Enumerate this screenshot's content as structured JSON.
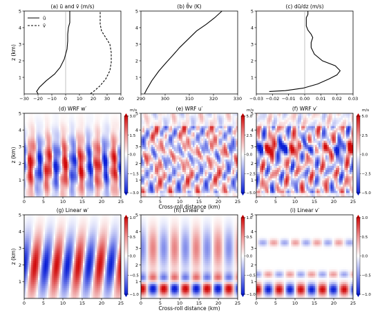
{
  "chart_data": [
    {
      "id": "a",
      "type": "line",
      "title": "(a) ū and v̄ (m/s)",
      "xlim": [
        -30,
        40
      ],
      "ylim": [
        0,
        5
      ],
      "ylabel": "z (km)",
      "xticks": [
        "−30",
        "−20",
        "−10",
        "0",
        "10",
        "20",
        "30",
        "40"
      ],
      "yticks": [
        "1",
        "2",
        "3",
        "4",
        "5"
      ],
      "legend": {
        "position": "top-left",
        "entries": [
          "ū",
          "v̄"
        ]
      },
      "series": [
        {
          "name": "ū",
          "style": "solid",
          "x": [
            -20,
            -21,
            -19,
            -14,
            -8,
            -4,
            -1,
            1,
            1.5,
            1.5,
            2,
            3,
            3,
            3
          ],
          "y": [
            0.02,
            0.15,
            0.4,
            0.8,
            1.2,
            1.6,
            2.1,
            2.7,
            3.2,
            3.6,
            4.0,
            4.3,
            4.7,
            5.0
          ]
        },
        {
          "name": "v̄",
          "style": "dashed",
          "x": [
            18,
            21,
            25,
            29,
            32,
            33,
            33,
            32,
            29,
            26,
            25,
            25,
            25
          ],
          "y": [
            0.02,
            0.2,
            0.5,
            0.9,
            1.4,
            1.9,
            2.5,
            3.0,
            3.4,
            3.8,
            4.2,
            4.6,
            5.0
          ]
        }
      ],
      "vline": 0
    },
    {
      "id": "b",
      "type": "line",
      "title": "(b) θ̄v (K)",
      "xlim": [
        290,
        330
      ],
      "ylim": [
        0,
        5
      ],
      "xticks": [
        "290",
        "300",
        "310",
        "320",
        "330"
      ],
      "yticks": [
        "1",
        "2",
        "3",
        "4",
        "5"
      ],
      "series": [
        {
          "name": "",
          "style": "solid",
          "x": [
            291.5,
            292.5,
            294.5,
            297.5,
            300.5,
            303,
            306,
            309.5,
            313,
            317,
            320.5,
            323.5
          ],
          "y": [
            0.02,
            0.3,
            0.8,
            1.4,
            1.9,
            2.3,
            2.8,
            3.3,
            3.8,
            4.2,
            4.6,
            5.0
          ]
        }
      ]
    },
    {
      "id": "c",
      "type": "line",
      "title": "(c) dū/dz (m/s)",
      "xlim": [
        -0.03,
        0.03
      ],
      "ylim": [
        0,
        5
      ],
      "xticks": [
        "−0.03",
        "−0.02",
        "−0.01",
        "0.00",
        "0.01",
        "0.02",
        "0.03"
      ],
      "yticks": [
        "1",
        "2",
        "3",
        "4",
        "5"
      ],
      "series": [
        {
          "name": "",
          "style": "solid",
          "x": [
            -0.022,
            -0.012,
            -0.001,
            0.008,
            0.015,
            0.02,
            0.022,
            0.019,
            0.011,
            0.006,
            0.004,
            0.004,
            0.005,
            0.004,
            0.002,
            0.001,
            0.001,
            0.001,
            0.002,
            0.002
          ],
          "y": [
            0.15,
            0.2,
            0.35,
            0.6,
            0.9,
            1.15,
            1.4,
            1.7,
            2.0,
            2.4,
            2.8,
            3.1,
            3.4,
            3.6,
            3.85,
            4.1,
            4.4,
            4.6,
            4.8,
            5.0
          ]
        }
      ],
      "vline": 0
    },
    {
      "id": "d",
      "type": "heatmap",
      "title": "(d) WRF w′",
      "ylabel": "z (km)",
      "xlim": [
        0,
        25
      ],
      "ylim": [
        0,
        5
      ],
      "pattern": "wrf_w",
      "xticks": [
        "0",
        "5",
        "10",
        "15",
        "20",
        "25"
      ],
      "yticks": [
        "1",
        "2",
        "3",
        "4",
        "5"
      ],
      "colorbar": {
        "unit": "m/s",
        "ticks": [
          "−3.0",
          "−1.5",
          "0.0",
          "1.5",
          "3.0"
        ],
        "range": [
          -3,
          3
        ]
      }
    },
    {
      "id": "e",
      "type": "heatmap",
      "title": "(e) WRF u′",
      "xlabel": "Cross-roll distance (km)",
      "xlim": [
        0,
        25
      ],
      "ylim": [
        0,
        5
      ],
      "pattern": "wrf_u",
      "xticks": [
        "0",
        "5",
        "10",
        "15",
        "20",
        "25"
      ],
      "yticks": [
        "1",
        "2",
        "3",
        "4",
        "5"
      ],
      "colorbar": {
        "unit": "m/s",
        "ticks": [
          "−5.0",
          "−2.5",
          "0.0",
          "2.5",
          "5.0"
        ],
        "range": [
          -5,
          5
        ]
      }
    },
    {
      "id": "f",
      "type": "heatmap",
      "title": "(f) WRF v′",
      "xlim": [
        0,
        25
      ],
      "ylim": [
        0,
        5
      ],
      "pattern": "wrf_v",
      "xticks": [
        "0",
        "5",
        "10",
        "15",
        "20",
        "25"
      ],
      "yticks": [
        "1",
        "2",
        "3",
        "4",
        "5"
      ],
      "colorbar": {
        "unit": "m/s",
        "ticks": [
          "−5.0",
          "−2.5",
          "0.0",
          "2.5",
          "5.0"
        ],
        "range": [
          -5,
          5
        ]
      }
    },
    {
      "id": "g",
      "type": "heatmap",
      "title": "(g) Linear w′",
      "ylabel": "z (km)",
      "xlim": [
        0,
        25
      ],
      "ylim": [
        0,
        5
      ],
      "pattern": "lin_w",
      "xticks": [
        "0",
        "5",
        "10",
        "15",
        "20",
        "25"
      ],
      "yticks": [
        "1",
        "2",
        "3",
        "4",
        "5"
      ],
      "colorbar": {
        "unit": "",
        "ticks": [
          "−1.0",
          "−0.5",
          "0.0",
          "0.5",
          "1.0"
        ],
        "range": [
          -1,
          1
        ]
      }
    },
    {
      "id": "h",
      "type": "heatmap",
      "title": "(h) Linear u′",
      "xlabel": "Cross-roll distance (km)",
      "xlim": [
        0,
        25
      ],
      "ylim": [
        0,
        5
      ],
      "pattern": "lin_u",
      "xticks": [
        "0",
        "5",
        "10",
        "15",
        "20",
        "25"
      ],
      "yticks": [
        "1",
        "2",
        "3",
        "4",
        "5"
      ],
      "colorbar": {
        "unit": "",
        "ticks": [
          "−1.0",
          "−0.5",
          "0.0",
          "0.5",
          "1.0"
        ],
        "range": [
          -1,
          1
        ]
      }
    },
    {
      "id": "i",
      "type": "heatmap",
      "title": "(i) Linear v′",
      "xlim": [
        0,
        25
      ],
      "ylim": [
        0,
        5
      ],
      "pattern": "lin_v",
      "xticks": [
        "0",
        "5",
        "10",
        "15",
        "20",
        "25"
      ],
      "yticks": [
        "1",
        "2",
        "3",
        "4",
        "5"
      ],
      "colorbar": {
        "unit": "",
        "ticks": [
          "−1.0",
          "−0.5",
          "0.0",
          "0.5",
          "1.0"
        ],
        "range": [
          -1,
          1
        ]
      }
    }
  ]
}
